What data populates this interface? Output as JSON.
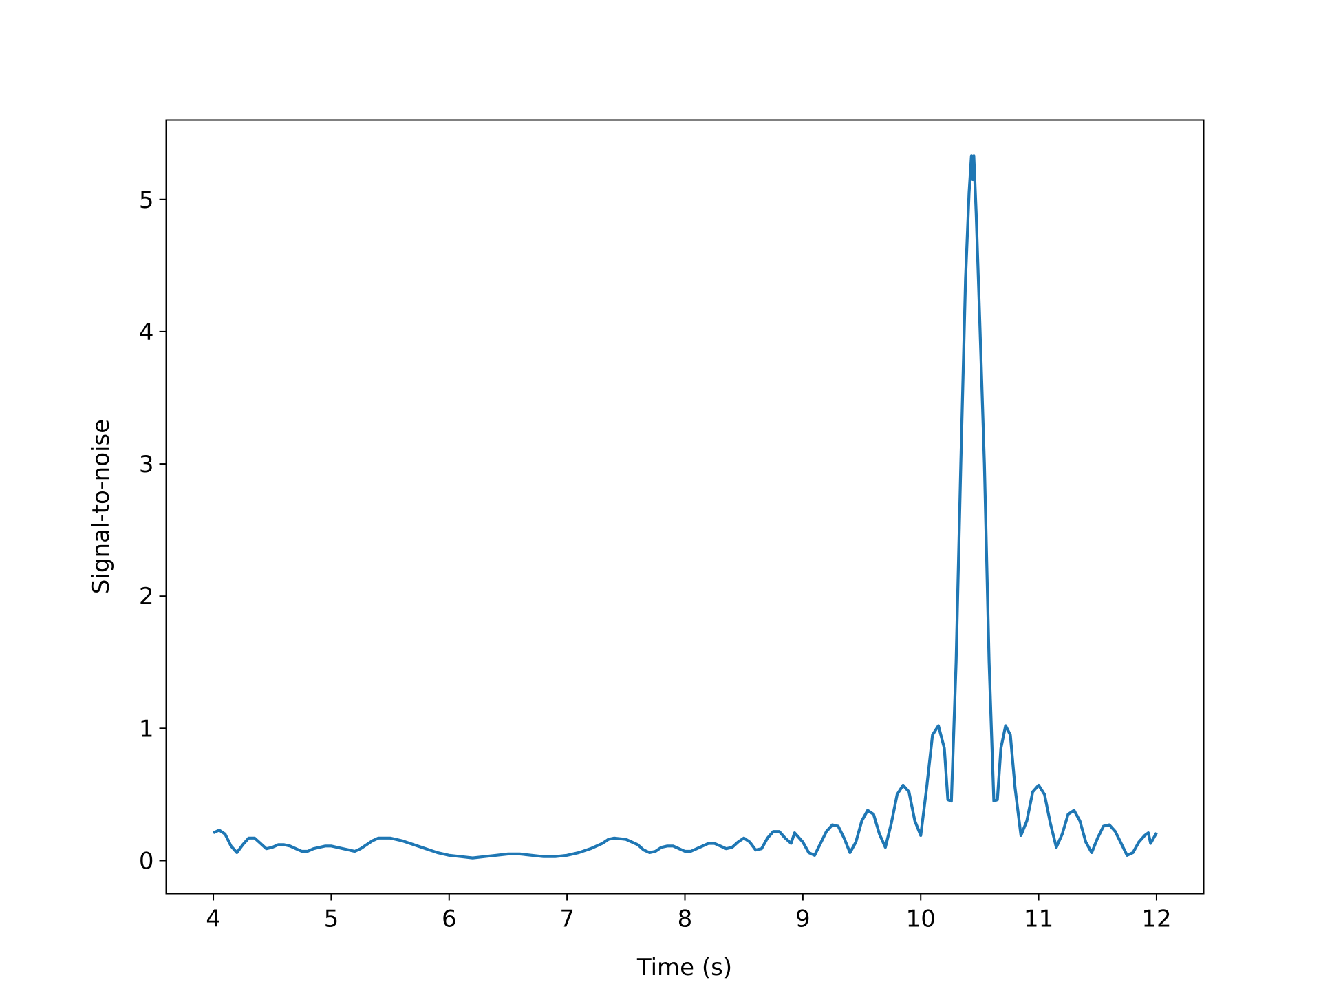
{
  "chart_data": {
    "type": "line",
    "title": "",
    "xlabel": "Time (s)",
    "ylabel": "Signal-to-noise",
    "xlim": [
      3.6,
      12.4
    ],
    "ylim": [
      -0.25,
      5.6
    ],
    "xticks": [
      4,
      5,
      6,
      7,
      8,
      9,
      10,
      11,
      12
    ],
    "yticks": [
      0,
      1,
      2,
      3,
      4,
      5
    ],
    "grid": false,
    "legend": "none",
    "line_color": "#1f77b4",
    "series": [
      {
        "x": [
          4.0,
          4.05,
          4.1,
          4.15,
          4.2,
          4.25,
          4.3,
          4.35,
          4.4,
          4.45,
          4.5,
          4.55,
          4.6,
          4.65,
          4.7,
          4.75,
          4.8,
          4.85,
          4.9,
          4.95,
          5.0,
          5.05,
          5.1,
          5.15,
          5.2,
          5.25,
          5.3,
          5.35,
          5.4,
          5.45,
          5.5,
          5.55,
          5.6,
          5.7,
          5.8,
          5.9,
          6.0,
          6.1,
          6.2,
          6.3,
          6.4,
          6.5,
          6.6,
          6.7,
          6.8,
          6.9,
          7.0,
          7.1,
          7.2,
          7.3,
          7.35,
          7.4,
          7.5,
          7.6,
          7.65,
          7.7,
          7.75,
          7.8,
          7.85,
          7.9,
          7.95,
          8.0,
          8.05,
          8.1,
          8.15,
          8.2,
          8.25,
          8.3,
          8.35,
          8.4,
          8.45,
          8.5,
          8.55,
          8.6,
          8.65,
          8.7,
          8.75,
          8.8,
          8.85,
          8.9,
          8.93,
          8.95,
          9.0,
          9.05,
          9.1,
          9.15,
          9.2,
          9.25,
          9.3,
          9.35,
          9.4,
          9.45,
          9.5,
          9.55,
          9.6,
          9.65,
          9.7,
          9.75,
          9.8,
          9.85,
          9.9,
          9.95,
          10.0,
          10.05,
          10.1,
          10.15,
          10.2,
          10.23,
          10.26,
          10.3,
          10.34,
          10.38,
          10.41,
          10.43,
          10.44,
          10.45,
          10.47,
          10.5,
          10.54,
          10.58,
          10.62,
          10.65,
          10.68,
          10.72,
          10.76,
          10.8,
          10.85,
          10.9,
          10.95,
          11.0,
          11.05,
          11.1,
          11.15,
          11.2,
          11.25,
          11.3,
          11.35,
          11.4,
          11.45,
          11.5,
          11.55,
          11.6,
          11.65,
          11.7,
          11.75,
          11.8,
          11.85,
          11.9,
          11.93,
          11.95,
          12.0
        ],
        "y": [
          0.21,
          0.23,
          0.2,
          0.11,
          0.06,
          0.12,
          0.17,
          0.17,
          0.13,
          0.09,
          0.1,
          0.12,
          0.12,
          0.11,
          0.09,
          0.07,
          0.07,
          0.09,
          0.1,
          0.11,
          0.11,
          0.1,
          0.09,
          0.08,
          0.07,
          0.09,
          0.12,
          0.15,
          0.17,
          0.17,
          0.17,
          0.16,
          0.15,
          0.12,
          0.09,
          0.06,
          0.04,
          0.03,
          0.02,
          0.03,
          0.04,
          0.05,
          0.05,
          0.04,
          0.03,
          0.03,
          0.04,
          0.06,
          0.09,
          0.13,
          0.16,
          0.17,
          0.16,
          0.12,
          0.08,
          0.06,
          0.07,
          0.1,
          0.11,
          0.11,
          0.09,
          0.07,
          0.07,
          0.09,
          0.11,
          0.13,
          0.13,
          0.11,
          0.09,
          0.1,
          0.14,
          0.17,
          0.14,
          0.08,
          0.09,
          0.17,
          0.22,
          0.22,
          0.17,
          0.13,
          0.21,
          0.19,
          0.14,
          0.06,
          0.04,
          0.13,
          0.22,
          0.27,
          0.26,
          0.17,
          0.06,
          0.14,
          0.3,
          0.38,
          0.35,
          0.2,
          0.1,
          0.28,
          0.5,
          0.57,
          0.52,
          0.3,
          0.19,
          0.55,
          0.95,
          1.02,
          0.85,
          0.46,
          0.45,
          1.5,
          3.0,
          4.4,
          5.05,
          5.33,
          5.15,
          5.33,
          4.9,
          4.1,
          3.0,
          1.5,
          0.45,
          0.46,
          0.85,
          1.02,
          0.95,
          0.55,
          0.19,
          0.3,
          0.52,
          0.57,
          0.5,
          0.28,
          0.1,
          0.2,
          0.35,
          0.38,
          0.3,
          0.14,
          0.06,
          0.17,
          0.26,
          0.27,
          0.22,
          0.13,
          0.04,
          0.06,
          0.14,
          0.19,
          0.21,
          0.13,
          0.21
        ]
      }
    ]
  }
}
